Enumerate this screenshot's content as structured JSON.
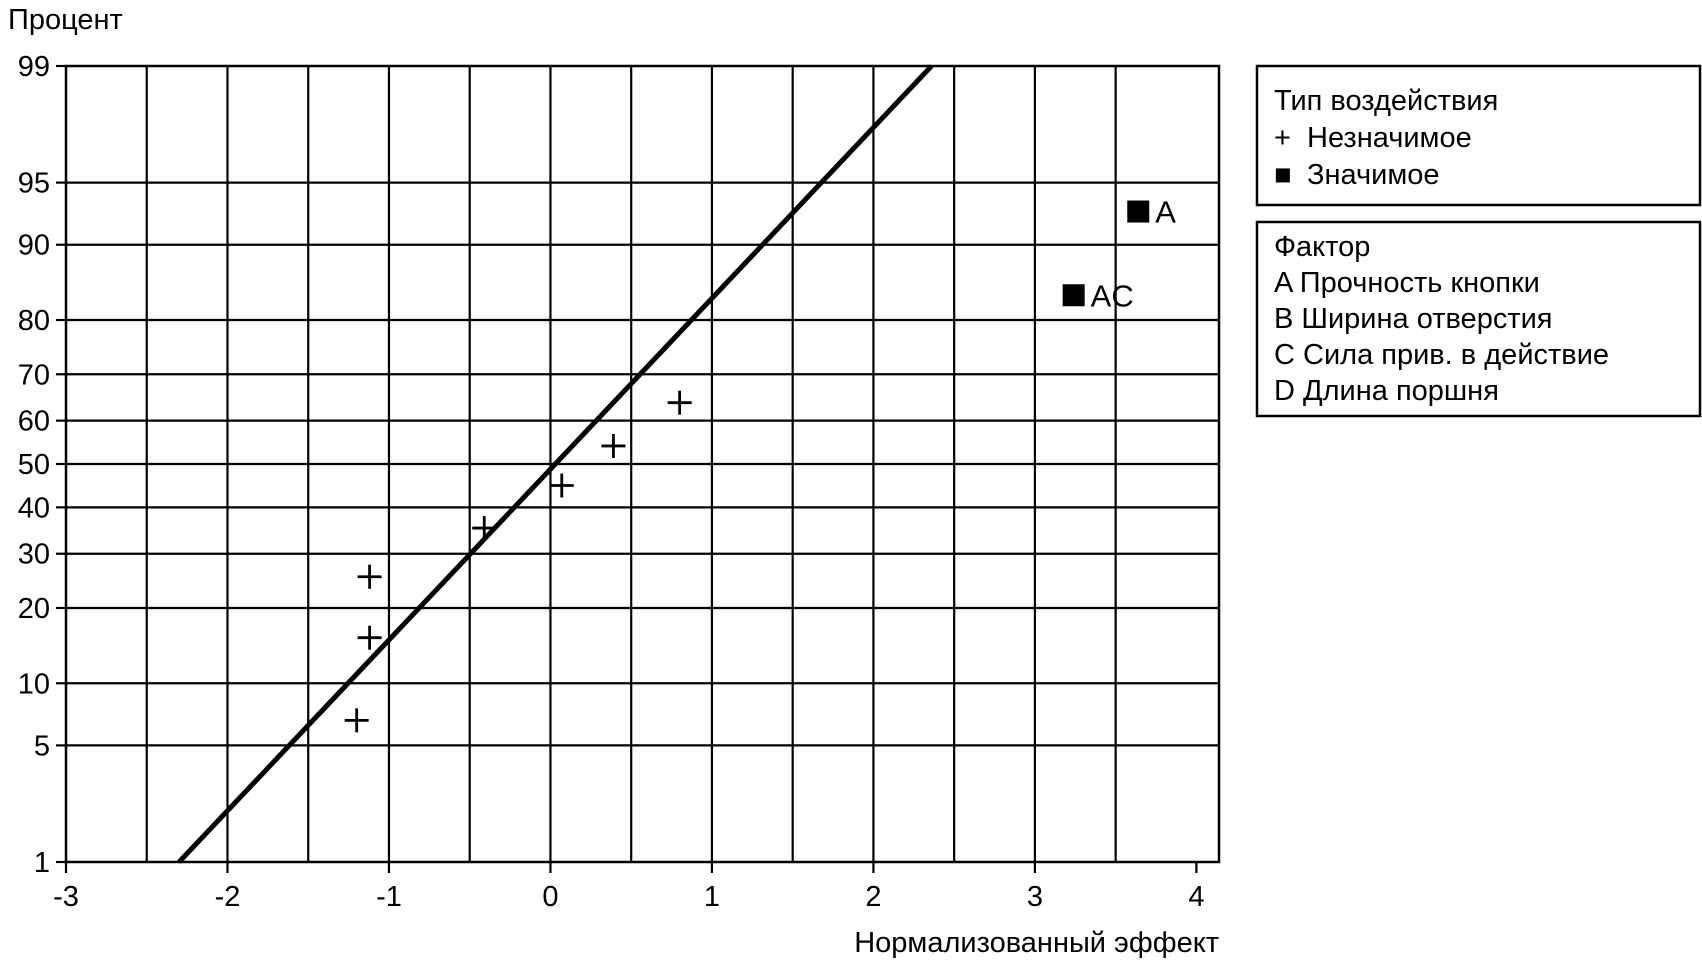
{
  "chart_data": {
    "type": "scatter",
    "title": "",
    "ylabel": "Процент",
    "xlabel": "Нормализованный эффект",
    "xlim": [
      -3,
      4
    ],
    "y_scale": "normal-probability",
    "ylim": [
      1,
      99
    ],
    "x_ticks": [
      "-3",
      "-2",
      "-1",
      "0",
      "1",
      "2",
      "3",
      "4"
    ],
    "y_ticks": [
      {
        "p": 1,
        "label": "1"
      },
      {
        "p": 5,
        "label": "5"
      },
      {
        "p": 10,
        "label": "10"
      },
      {
        "p": 20,
        "label": "20"
      },
      {
        "p": 30,
        "label": "30"
      },
      {
        "p": 40,
        "label": "40"
      },
      {
        "p": 50,
        "label": "50"
      },
      {
        "p": 60,
        "label": "60"
      },
      {
        "p": 70,
        "label": "70"
      },
      {
        "p": 80,
        "label": "80"
      },
      {
        "p": 90,
        "label": "90"
      },
      {
        "p": 95,
        "label": "95"
      },
      {
        "p": 99,
        "label": "99"
      }
    ],
    "x_grid": [
      -3,
      -2.5,
      -2,
      -1.5,
      -1,
      -0.5,
      0,
      0.5,
      1,
      1.5,
      2,
      2.5,
      3,
      3.5
    ],
    "grid": true,
    "fit_line": {
      "x": [
        -2.3,
        2.36
      ],
      "p": [
        1,
        99
      ]
    },
    "series": [
      {
        "name": "Незначимое",
        "marker": "plus",
        "points": [
          {
            "x": -1.2,
            "p": 6.7
          },
          {
            "x": -1.12,
            "p": 15.5
          },
          {
            "x": -1.12,
            "p": 25.5
          },
          {
            "x": -0.41,
            "p": 35.4
          },
          {
            "x": 0.07,
            "p": 45.0
          },
          {
            "x": 0.39,
            "p": 54.2
          },
          {
            "x": 0.8,
            "p": 64.0
          }
        ]
      },
      {
        "name": "Значимое",
        "marker": "square",
        "points": [
          {
            "x": 3.64,
            "p": 93.0,
            "label": "A"
          },
          {
            "x": 3.24,
            "p": 83.8,
            "label": "AC"
          }
        ]
      }
    ],
    "legend_type": {
      "title": "Тип воздействия",
      "items": [
        {
          "symbol": "+",
          "label": "Незначимое"
        },
        {
          "symbol": "■",
          "label": "Значимое"
        }
      ]
    },
    "legend_factor": {
      "title": "Фактор",
      "items": [
        {
          "key": "A",
          "label": "Прочность кнопки"
        },
        {
          "key": "B",
          "label": "Ширина отверстия"
        },
        {
          "key": "C",
          "label": "Сила прив. в действие"
        },
        {
          "key": "D",
          "label": "Длина поршня"
        }
      ]
    },
    "legend_position": "right"
  }
}
